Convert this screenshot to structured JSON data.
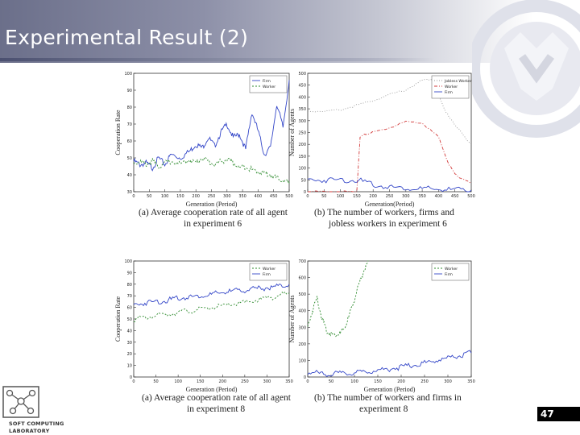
{
  "slide": {
    "title": "Experimental Result (2)",
    "page_number": "47"
  },
  "logo": {
    "line1": "SOFT COMPUTING",
    "line2": "LABORATORY"
  },
  "colors": {
    "blue": "#3346c8",
    "green": "#2e8b2e",
    "red": "#d23a3a",
    "gray": "#9a9a9a",
    "axis": "#333333"
  },
  "chart_data": [
    {
      "id": "top_left",
      "type": "line",
      "ylabel": "Cooperation Rate",
      "xlabel": "Generation (Period)",
      "xlim": [
        0,
        500
      ],
      "ylim": [
        30,
        100
      ],
      "xticks": [
        "0",
        "50",
        "100",
        "150",
        "200",
        "250",
        "300",
        "350",
        "400",
        "450",
        "500"
      ],
      "yticks": [
        "30",
        "40",
        "50",
        "60",
        "70",
        "80",
        "90",
        "100"
      ],
      "legend": [
        "Firm",
        "Worker"
      ],
      "caption_line1": "(a) Average cooperation rate of all agent",
      "caption_line2": "in experiment 6",
      "series": [
        {
          "name": "Firm",
          "color": "blue",
          "x": [
            0,
            20,
            40,
            60,
            80,
            100,
            120,
            150,
            180,
            200,
            220,
            240,
            260,
            280,
            300,
            320,
            340,
            360,
            380,
            400,
            420,
            440,
            460,
            480,
            500
          ],
          "y": [
            48,
            46,
            47,
            44,
            50,
            46,
            52,
            50,
            54,
            58,
            56,
            62,
            57,
            65,
            70,
            62,
            64,
            55,
            77,
            66,
            52,
            56,
            82,
            68,
            96
          ]
        },
        {
          "name": "Worker",
          "color": "green",
          "x": [
            0,
            20,
            40,
            60,
            80,
            100,
            120,
            150,
            180,
            200,
            220,
            240,
            260,
            280,
            300,
            320,
            340,
            360,
            380,
            400,
            420,
            440,
            460,
            480,
            500
          ],
          "y": [
            47,
            48,
            46,
            48,
            45,
            47,
            48,
            46,
            49,
            47,
            50,
            48,
            46,
            48,
            49,
            47,
            44,
            45,
            43,
            42,
            41,
            40,
            38,
            37,
            35
          ]
        }
      ]
    },
    {
      "id": "top_right",
      "type": "line",
      "ylabel": "Number of Agents",
      "xlabel": "Generation(Period)",
      "xlim": [
        0,
        500
      ],
      "ylim": [
        0,
        500
      ],
      "xticks": [
        "0",
        "50",
        "100",
        "150",
        "200",
        "250",
        "300",
        "350",
        "400",
        "450",
        "500"
      ],
      "yticks": [
        "0",
        "50",
        "100",
        "150",
        "200",
        "250",
        "300",
        "350",
        "400",
        "450",
        "500"
      ],
      "legend": [
        "Jobless Worker",
        "Worker",
        "Firm"
      ],
      "caption_line1": "(b) The number of workers, firms and",
      "caption_line2": "jobless workers in experiment 6",
      "series": [
        {
          "name": "Jobless Worker",
          "color": "gray",
          "x": [
            0,
            50,
            100,
            150,
            200,
            250,
            300,
            350,
            380,
            420,
            450,
            480,
            500
          ],
          "y": [
            340,
            340,
            345,
            365,
            385,
            410,
            430,
            470,
            475,
            340,
            285,
            230,
            200
          ]
        },
        {
          "name": "Worker",
          "color": "red",
          "x": [
            0,
            50,
            100,
            150,
            160,
            180,
            200,
            250,
            300,
            350,
            400,
            430,
            450,
            470,
            500
          ],
          "y": [
            0,
            0,
            0,
            0,
            230,
            245,
            250,
            270,
            295,
            290,
            230,
            120,
            75,
            55,
            35
          ]
        },
        {
          "name": "Firm",
          "color": "blue",
          "x": [
            0,
            50,
            100,
            150,
            200,
            250,
            300,
            350,
            400,
            450,
            500
          ],
          "y": [
            50,
            50,
            50,
            50,
            30,
            20,
            15,
            12,
            10,
            8,
            6
          ]
        }
      ]
    },
    {
      "id": "bottom_left",
      "type": "line",
      "ylabel": "Cooperation Rate",
      "xlabel": "Generation (Period)",
      "xlim": [
        0,
        350
      ],
      "ylim": [
        0,
        100
      ],
      "xticks": [
        "0",
        "50",
        "100",
        "150",
        "200",
        "250",
        "300",
        "350"
      ],
      "yticks": [
        "0",
        "10",
        "20",
        "30",
        "40",
        "50",
        "60",
        "70",
        "80",
        "90",
        "100"
      ],
      "legend": [
        "Worker",
        "Firm"
      ],
      "caption_line1": "(a) Average cooperation rate of all agent",
      "caption_line2": "in experiment 8",
      "series": [
        {
          "name": "Worker",
          "color": "green",
          "x": [
            0,
            25,
            50,
            75,
            100,
            125,
            150,
            175,
            200,
            225,
            250,
            275,
            300,
            325,
            350
          ],
          "y": [
            50,
            51,
            53,
            54,
            56,
            57,
            58,
            60,
            61,
            63,
            64,
            66,
            68,
            70,
            72
          ]
        },
        {
          "name": "Firm",
          "color": "blue",
          "x": [
            0,
            25,
            50,
            75,
            100,
            125,
            150,
            175,
            200,
            225,
            250,
            275,
            300,
            325,
            350
          ],
          "y": [
            62,
            64,
            65,
            66,
            68,
            69,
            70,
            71,
            73,
            74,
            75,
            76,
            77,
            78,
            80
          ]
        }
      ]
    },
    {
      "id": "bottom_right",
      "type": "line",
      "ylabel": "Number of Agents",
      "xlabel": "Generation (Period)",
      "xlim": [
        0,
        350
      ],
      "ylim": [
        0,
        700
      ],
      "xticks": [
        "0",
        "50",
        "100",
        "150",
        "200",
        "250",
        "300",
        "350"
      ],
      "yticks": [
        "0",
        "100",
        "200",
        "300",
        "400",
        "500",
        "600",
        "700"
      ],
      "legend": [
        "Worker",
        "Firm"
      ],
      "caption_line1": "(b) The number of workers and firms in",
      "caption_line2": "experiment 8",
      "series": [
        {
          "name": "Worker",
          "color": "green",
          "x": [
            0,
            10,
            20,
            30,
            40,
            50,
            60,
            70,
            80,
            90,
            100,
            110,
            120,
            130
          ],
          "y": [
            300,
            400,
            480,
            360,
            280,
            260,
            255,
            265,
            300,
            380,
            470,
            560,
            640,
            700
          ]
        },
        {
          "name": "Firm",
          "color": "blue",
          "x": [
            0,
            25,
            50,
            75,
            100,
            125,
            150,
            175,
            200,
            225,
            250,
            275,
            300,
            325,
            350
          ],
          "y": [
            28,
            22,
            18,
            20,
            25,
            32,
            40,
            50,
            60,
            72,
            85,
            100,
            115,
            130,
            145
          ]
        }
      ]
    }
  ]
}
